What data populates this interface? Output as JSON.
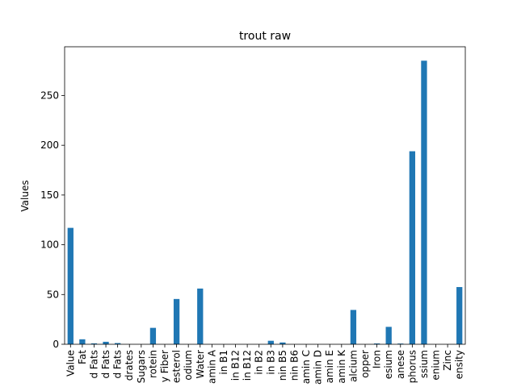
{
  "chart_data": {
    "type": "bar",
    "title": "trout raw",
    "xlabel": "",
    "ylabel": "Values",
    "ylim": [
      0,
      299
    ],
    "yticks": [
      0,
      50,
      100,
      150,
      200,
      250
    ],
    "grid": false,
    "legend": false,
    "bar_color": "#1f77b4",
    "categories": [
      "Value",
      "Fat",
      "d Fats",
      "d Fats",
      "d Fats",
      "drates",
      "Sugars",
      "rotein",
      "y Fiber",
      "esterol",
      "odium",
      "Water",
      "amin A",
      "in B1",
      "in B12",
      "in B12",
      "in B2",
      "in B3",
      "nin B5",
      "nin B6",
      "amin C",
      "amin D",
      "amin E",
      "amin K",
      "alcium",
      "opper",
      "Iron",
      "esium",
      "anese",
      "phorus",
      "ssium",
      "enium",
      "Zinc",
      "ensity"
    ],
    "values": [
      117,
      5,
      0.9,
      2.5,
      1.2,
      0,
      0,
      16.5,
      0,
      45.5,
      0,
      56,
      0,
      0,
      0,
      0,
      0,
      3.5,
      1.8,
      0,
      0,
      0,
      0,
      0,
      34.5,
      0,
      0.8,
      17.5,
      0.7,
      194,
      285,
      0,
      0,
      57.5
    ]
  }
}
